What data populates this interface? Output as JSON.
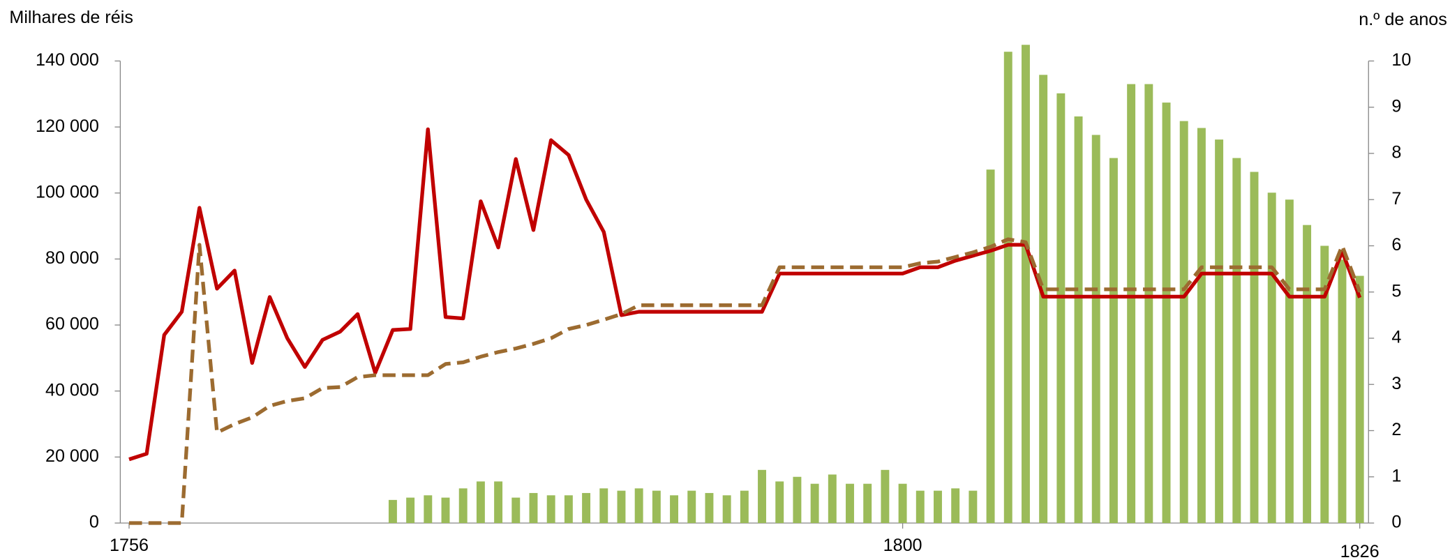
{
  "chart_data": {
    "type": "combo",
    "y_label": "Milhares de réis",
    "y2_label": "n.º de anos",
    "categories": [
      "1756",
      null,
      null,
      null,
      null,
      null,
      null,
      null,
      null,
      null,
      null,
      null,
      null,
      null,
      null,
      null,
      null,
      null,
      null,
      null,
      null,
      null,
      null,
      null,
      null,
      null,
      null,
      null,
      null,
      null,
      null,
      null,
      null,
      null,
      null,
      null,
      null,
      null,
      null,
      null,
      null,
      null,
      null,
      null,
      "1800",
      null,
      null,
      null,
      null,
      null,
      null,
      null,
      null,
      null,
      null,
      null,
      null,
      null,
      null,
      null,
      null,
      null,
      null,
      null,
      null,
      null,
      null,
      null,
      null,
      null,
      "1826"
    ],
    "ylim": [
      0,
      140000
    ],
    "yticks": [
      0,
      {
        "value": 20000,
        "label": "20 000"
      },
      {
        "value": 40000,
        "label": "40 000"
      },
      {
        "value": 60000,
        "label": "60 000"
      },
      {
        "value": 80000,
        "label": "80 000"
      },
      {
        "value": 100000,
        "label": "100 000"
      },
      {
        "value": 120000,
        "label": "120 000"
      },
      {
        "value": 140000,
        "label": "140 000"
      }
    ],
    "y2lim": [
      0,
      10
    ],
    "y2ticks": [
      0,
      1,
      2,
      3,
      4,
      5,
      6,
      7,
      8,
      9,
      10
    ],
    "series": [
      {
        "type": "bar",
        "axis": "y2",
        "color": "#9bbb59",
        "values": [
          0,
          0,
          0,
          0,
          0,
          0,
          0,
          0,
          0,
          0,
          0,
          0,
          0,
          0,
          0,
          0.5,
          0.55,
          0.6,
          0.55,
          0.75,
          0.9,
          0.9,
          0.55,
          0.65,
          0.6,
          0.6,
          0.65,
          0.75,
          0.7,
          0.75,
          0.7,
          0.6,
          0.7,
          0.65,
          0.6,
          0.7,
          1.15,
          0.9,
          1.0,
          0.85,
          1.05,
          0.85,
          0.85,
          1.15,
          0.85,
          0.7,
          0.7,
          0.75,
          0.7,
          7.65,
          10.2,
          10.35,
          9.7,
          9.3,
          8.8,
          8.4,
          7.9,
          9.5,
          9.5,
          9.1,
          8.7,
          8.55,
          8.3,
          7.9,
          7.6,
          7.15,
          7.0,
          6.45,
          6.0,
          5.7,
          5.35
        ]
      },
      {
        "type": "line",
        "color": "#c00000",
        "dashed": false,
        "values": [
          19300,
          21000,
          57000,
          64000,
          95500,
          71000,
          76500,
          48500,
          68500,
          56000,
          47300,
          55500,
          58000,
          63300,
          45500,
          58500,
          58800,
          119300,
          62400,
          62000,
          97500,
          83500,
          110300,
          88800,
          116000,
          111500,
          98000,
          88200,
          63000,
          64000,
          64000,
          64000,
          64000,
          64000,
          64000,
          64000,
          64000,
          75600,
          75600,
          75600,
          75600,
          75600,
          75600,
          75600,
          75600,
          77500,
          77500,
          79500,
          81000,
          82500,
          84300,
          84300,
          68600,
          68600,
          68600,
          68600,
          68600,
          68600,
          68600,
          68600,
          68600,
          75600,
          75600,
          75600,
          75600,
          75600,
          68600,
          68600,
          68600,
          82300,
          68300
        ]
      },
      {
        "type": "line",
        "color": "#9c6b30",
        "dashed": true,
        "values": [
          0,
          0,
          0,
          0,
          84300,
          27400,
          30000,
          32000,
          35500,
          37000,
          37800,
          40900,
          41200,
          44200,
          44800,
          44800,
          44800,
          44800,
          48200,
          48700,
          50400,
          51800,
          52900,
          54300,
          56000,
          58800,
          60000,
          61600,
          63300,
          66000,
          66000,
          66000,
          66000,
          66000,
          66000,
          66000,
          66000,
          77500,
          77500,
          77500,
          77500,
          77500,
          77500,
          77500,
          77500,
          78700,
          79200,
          80600,
          82000,
          83700,
          86000,
          85100,
          70800,
          70800,
          70800,
          70800,
          70800,
          70800,
          70800,
          70800,
          70800,
          77500,
          77500,
          77500,
          77500,
          77500,
          70800,
          70800,
          70800,
          84000,
          70000
        ]
      }
    ]
  }
}
